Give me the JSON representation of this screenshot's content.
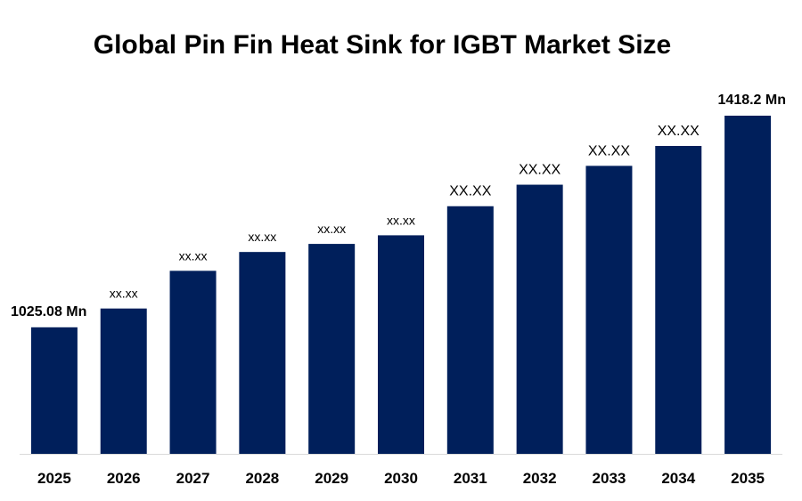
{
  "chart_data": {
    "type": "bar",
    "title": "Global Pin Fin Heat Sink for IGBT Market Size",
    "xlabel": "",
    "ylabel": "",
    "categories": [
      "2025",
      "2026",
      "2027",
      "2028",
      "2029",
      "2030",
      "2031",
      "2032",
      "2033",
      "2034",
      "2035"
    ],
    "values": [
      1025.08,
      1060,
      1130,
      1165,
      1180,
      1196,
      1250,
      1290,
      1325,
      1362,
      1418.2
    ],
    "data_labels": [
      "1025.08 Mn",
      "xx.xx",
      "xx.xx",
      "xx.xx",
      "xx.xx",
      "xx.xx",
      "XX.XX",
      "XX.XX",
      "XX.XX",
      "XX.XX",
      "1418.2 Mn"
    ],
    "ylim": [
      790,
      1418.2
    ],
    "grid": false,
    "legend": "none",
    "bar_color": "#001f5b",
    "axis_color": "#d9d9d9"
  }
}
